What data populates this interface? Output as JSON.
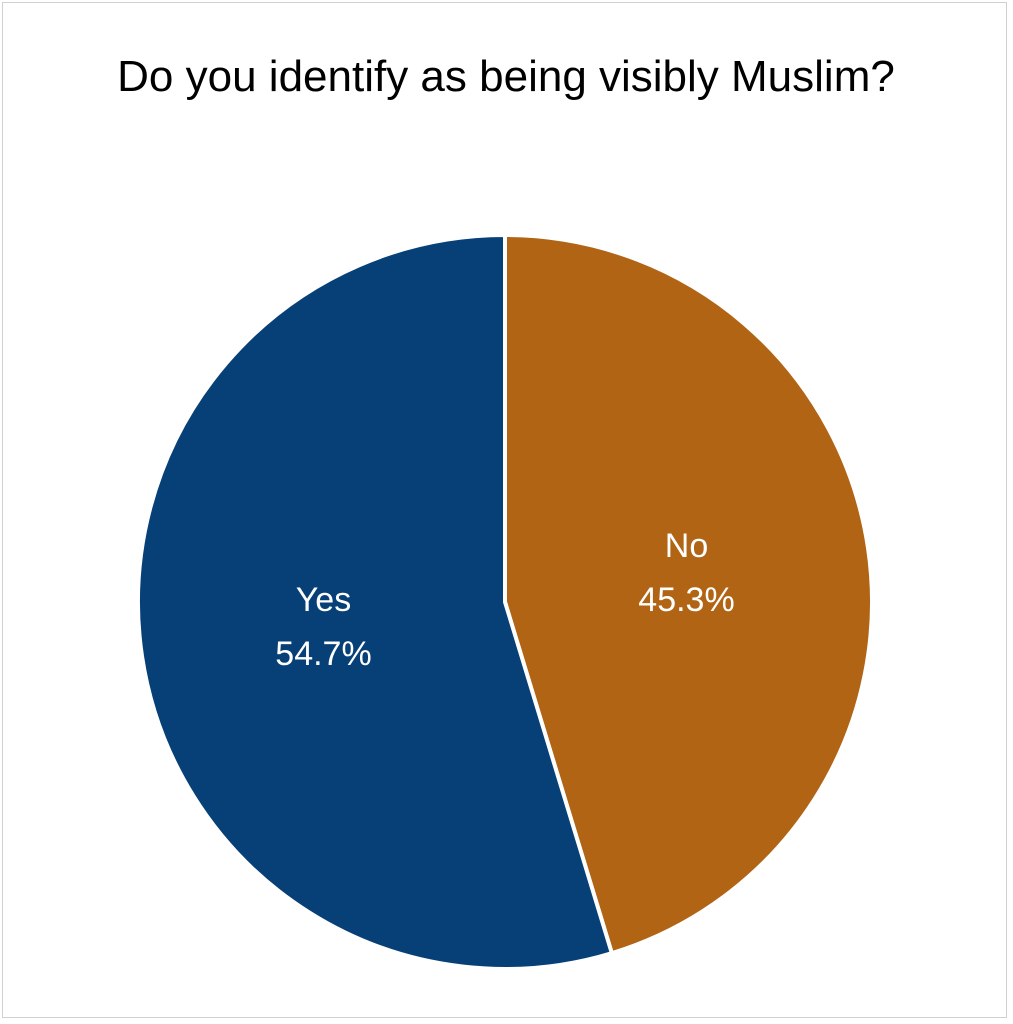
{
  "chart_data": {
    "type": "pie",
    "title": "Do you identify as being visibly Muslim?",
    "categories": [
      "No",
      "Yes"
    ],
    "values": [
      45.3,
      54.7
    ],
    "value_labels": [
      "45.3%",
      "54.7%"
    ],
    "colors": [
      "#b06414",
      "#073f77"
    ]
  }
}
